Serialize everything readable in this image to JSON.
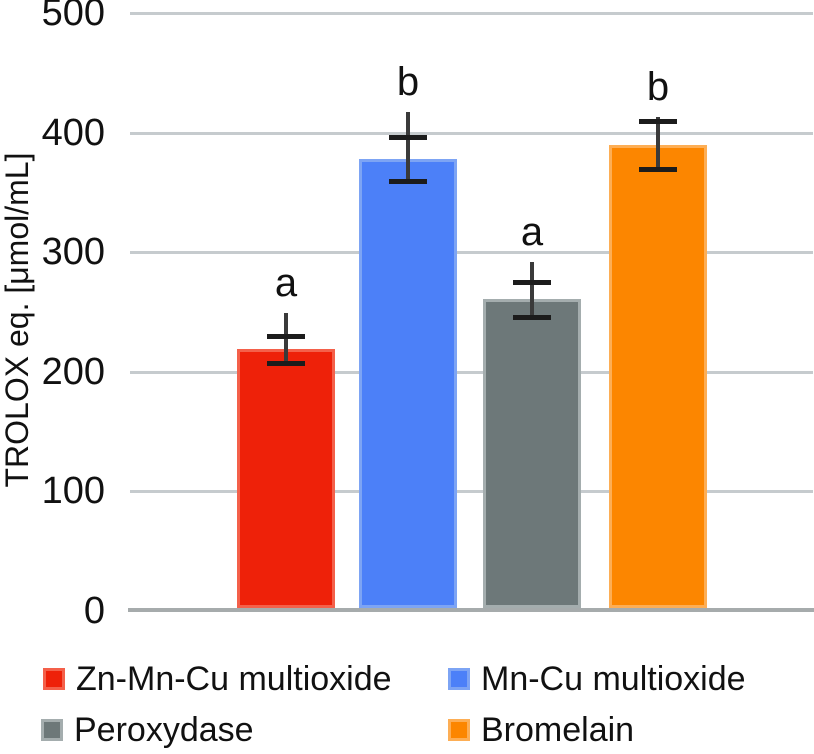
{
  "chart_data": {
    "type": "bar",
    "title": "",
    "xlabel": "",
    "ylabel": "TROLOX eq. [μmol/mL]",
    "ylim": [
      0,
      500
    ],
    "yticks": [
      0,
      100,
      200,
      300,
      400,
      500
    ],
    "grid": true,
    "legend_position": "bottom",
    "categories": [
      "Zn-Mn-Cu multioxide",
      "Mn-Cu multioxide",
      "Peroxydase",
      "Bromelain"
    ],
    "values": [
      219,
      378,
      261,
      390
    ],
    "error_bars": [
      11,
      18,
      14,
      20
    ],
    "whisker_line_top": [
      249,
      417,
      292,
      413
    ],
    "significance_letters": [
      "a",
      "b",
      "a",
      "b"
    ],
    "bar_colors": [
      "#ee2109",
      "#4c80f8",
      "#6d7879",
      "#fc8600"
    ],
    "bar_edge_colors": [
      "#f4604a",
      "#7da4f4",
      "#a4adae",
      "#fdae55"
    ],
    "axis_color": "#a6abac",
    "gridline_color": "#c6cbce",
    "error_bar_color": "#3a3a3a",
    "error_cap_color": "#1c1c1c",
    "text_color": "#111111"
  }
}
